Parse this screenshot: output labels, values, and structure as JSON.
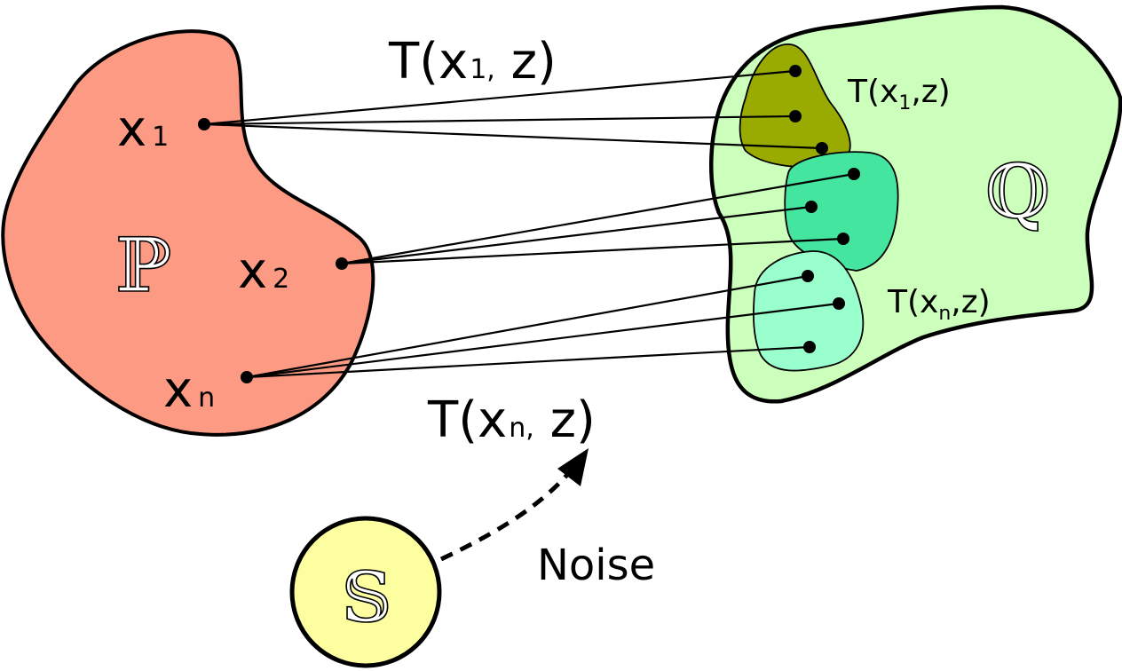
{
  "source_space": {
    "symbol": "ℙ",
    "color": "#fc9a84",
    "points": [
      {
        "base": "x",
        "sub": "1"
      },
      {
        "base": "x",
        "sub": "2"
      },
      {
        "base": "x",
        "sub": "n"
      }
    ]
  },
  "target_space": {
    "symbol": "ℚ",
    "color": "#ccffbb",
    "regions": [
      {
        "label_pre": "T(x",
        "label_sub": "1",
        "label_post": ",z)",
        "color": "#99aa00"
      },
      {
        "label_pre": "",
        "label_sub": "",
        "label_post": "",
        "color": "#44e59e"
      },
      {
        "label_pre": "T(x",
        "label_sub": "n",
        "label_post": ",z)",
        "color": "#99ffcc"
      }
    ]
  },
  "mapping_labels": {
    "top": {
      "pre": "T(x",
      "sub": "1,",
      "post": " z)"
    },
    "bottom": {
      "pre": "T(x",
      "sub": "n,",
      "post": " z)"
    }
  },
  "noise_source": {
    "symbol": "𝕊",
    "color": "#fdfe9f",
    "arrow_label": "Noise"
  }
}
